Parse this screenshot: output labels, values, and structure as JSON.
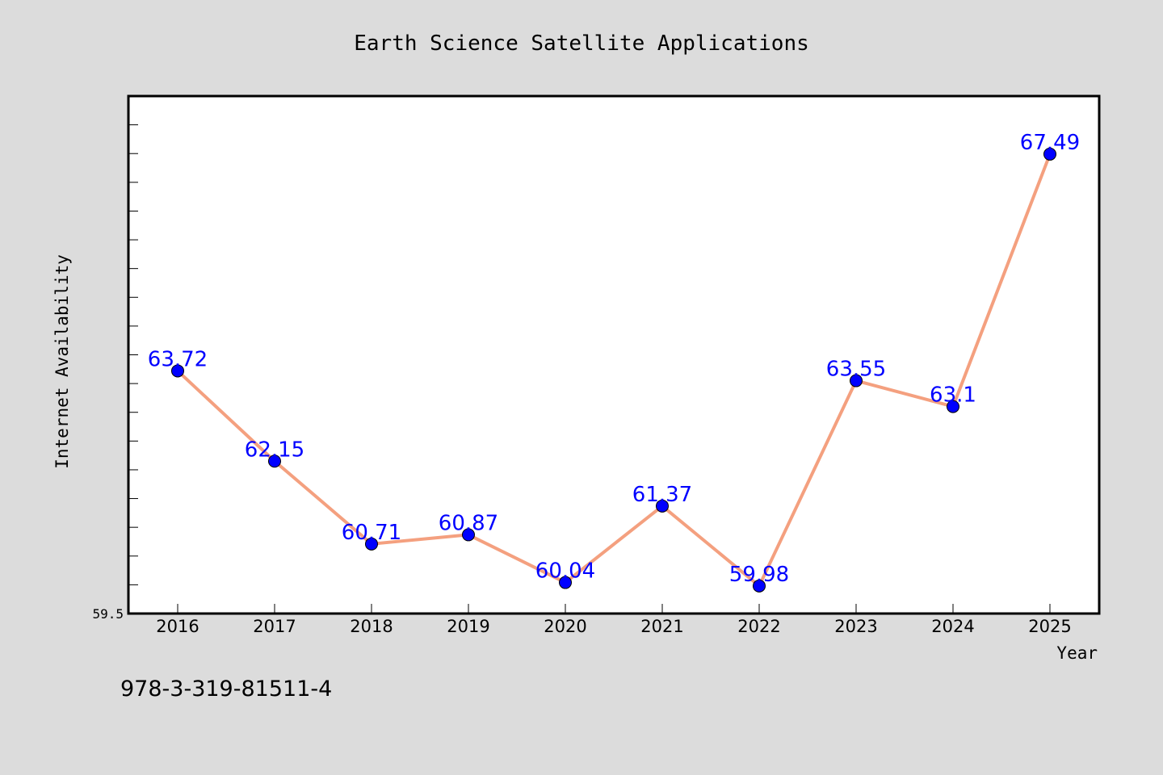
{
  "footer_text": "978-3-319-81511-4",
  "colors": {
    "background": "#dcdcdc",
    "plot_background": "#ffffff",
    "line": "#f4a07f",
    "marker": "#0000ff",
    "data_label": "#0000ff"
  },
  "chart_data": {
    "type": "line",
    "title": "Earth Science Satellite Applications",
    "xlabel": "Year",
    "ylabel": "Internet Availability",
    "x": [
      "2016",
      "2017",
      "2018",
      "2019",
      "2020",
      "2021",
      "2022",
      "2023",
      "2024",
      "2025"
    ],
    "series": [
      {
        "values": [
          63.72,
          62.15,
          60.71,
          60.87,
          60.04,
          61.37,
          59.98,
          63.55,
          63.1,
          67.49
        ]
      }
    ],
    "data_labels": [
      "63.72",
      "62.15",
      "60.71",
      "60.87",
      "60.04",
      "61.37",
      "59.98",
      "63.55",
      "63.1",
      "67.49"
    ],
    "ylim": [
      59.5,
      68.5
    ],
    "ytick_labels": [
      "59.5"
    ],
    "grid": false,
    "legend": "none"
  }
}
